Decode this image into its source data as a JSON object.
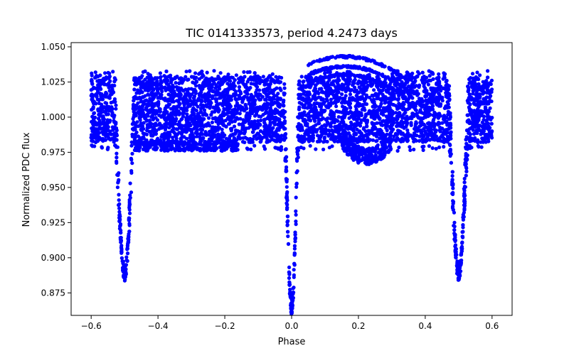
{
  "chart_data": {
    "type": "scatter",
    "title": "TIC 0141333573, period 4.2473 days",
    "xlabel": "Phase",
    "ylabel": "Normalized PDC flux",
    "xlim": [
      -0.66,
      0.66
    ],
    "ylim": [
      0.859,
      1.053
    ],
    "xticks": [
      -0.6,
      -0.4,
      -0.2,
      0.0,
      0.2,
      0.4,
      0.6
    ],
    "xtick_labels": [
      "−0.6",
      "−0.4",
      "−0.2",
      "0.0",
      "0.2",
      "0.4",
      "0.6"
    ],
    "yticks": [
      0.875,
      0.9,
      0.925,
      0.95,
      0.975,
      1.0,
      1.025,
      1.05
    ],
    "ytick_labels": [
      "0.875",
      "0.900",
      "0.925",
      "0.950",
      "0.975",
      "1.000",
      "1.025",
      "1.050"
    ],
    "series": [
      {
        "name": "PDC flux",
        "color": "#0000ff",
        "phase_range": [
          -0.6,
          0.6
        ],
        "baseline_band": [
          0.982,
          1.029
        ],
        "primary_eclipse": {
          "phase": 0.0,
          "min_flux": 0.865
        },
        "secondary_eclipses": [
          {
            "phase": -0.5,
            "min_flux": 0.889
          },
          {
            "phase": 0.5,
            "min_flux": 0.889
          }
        ],
        "upper_arc": {
          "phase_range": [
            0.05,
            0.35
          ],
          "peak_phase": 0.16,
          "peak_flux": 1.043
        },
        "lower_dip": {
          "phase_range": [
            0.15,
            0.3
          ],
          "min_flux": 0.966
        }
      }
    ]
  }
}
